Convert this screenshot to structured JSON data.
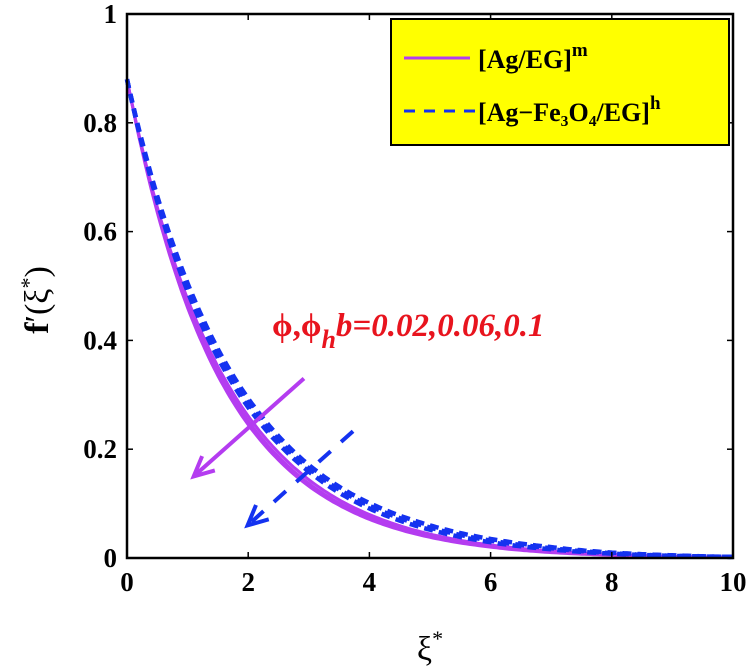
{
  "chart_data": {
    "type": "line",
    "title": "",
    "xlabel": "ξ*",
    "ylabel": "f′(ξ*)",
    "xlim": [
      0,
      10
    ],
    "ylim": [
      0,
      1
    ],
    "xticks": [
      0,
      2,
      4,
      6,
      8,
      10
    ],
    "xtick_labels": [
      "0",
      "2",
      "4",
      "6",
      "8",
      "10"
    ],
    "yticks": [
      0,
      0.2,
      0.4,
      0.6,
      0.8,
      1
    ],
    "ytick_labels": [
      "0",
      "0.2",
      "0.4",
      "0.6",
      "0.8",
      "1"
    ],
    "grid": false,
    "legend_position": "upper right",
    "legend": [
      {
        "label": "[Ag/EG]",
        "sup": "m",
        "style": "solid",
        "color": "#b43cf0"
      },
      {
        "label": "[Ag−Fe₃O₄/EG]",
        "sup": "h",
        "style": "dashed",
        "color": "#1432f0"
      }
    ],
    "annotation": {
      "text": "ϕ,ϕ",
      "sub": "h",
      "text2": "b=0.02,0.06,0.1",
      "color": "#e8141e"
    },
    "x": [
      0,
      0.5,
      1,
      1.5,
      2,
      2.5,
      3,
      3.5,
      4,
      5,
      6,
      7,
      8,
      9,
      10
    ],
    "series": [
      {
        "name": "[Ag/EG]^m b=0.02",
        "style": "solid",
        "color": "#b43cf0",
        "values": [
          0.88,
          0.635,
          0.46,
          0.335,
          0.245,
          0.18,
          0.132,
          0.097,
          0.071,
          0.038,
          0.02,
          0.01,
          0.005,
          0.002,
          0.001
        ]
      },
      {
        "name": "[Ag/EG]^m b=0.06",
        "style": "solid",
        "color": "#b43cf0",
        "values": [
          0.88,
          0.64,
          0.468,
          0.343,
          0.252,
          0.186,
          0.137,
          0.101,
          0.075,
          0.041,
          0.022,
          0.011,
          0.006,
          0.003,
          0.001
        ]
      },
      {
        "name": "[Ag/EG]^m b=0.1",
        "style": "solid",
        "color": "#b43cf0",
        "values": [
          0.88,
          0.645,
          0.476,
          0.352,
          0.261,
          0.194,
          0.144,
          0.107,
          0.08,
          0.044,
          0.024,
          0.013,
          0.007,
          0.003,
          0.001
        ]
      },
      {
        "name": "[Ag−Fe3O4/EG]^h b=0.02",
        "style": "dashed",
        "color": "#1432f0",
        "values": [
          0.88,
          0.655,
          0.49,
          0.368,
          0.277,
          0.21,
          0.159,
          0.12,
          0.091,
          0.052,
          0.029,
          0.016,
          0.008,
          0.004,
          0.002
        ]
      },
      {
        "name": "[Ag−Fe3O4/EG]^h b=0.06",
        "style": "dashed",
        "color": "#1432f0",
        "values": [
          0.88,
          0.66,
          0.498,
          0.376,
          0.285,
          0.217,
          0.165,
          0.126,
          0.096,
          0.056,
          0.032,
          0.018,
          0.009,
          0.004,
          0.002
        ]
      },
      {
        "name": "[Ag−Fe3O4/EG]^h b=0.1",
        "style": "dashed",
        "color": "#1432f0",
        "values": [
          0.88,
          0.665,
          0.505,
          0.384,
          0.293,
          0.224,
          0.171,
          0.131,
          0.101,
          0.06,
          0.035,
          0.02,
          0.01,
          0.005,
          0.002
        ]
      }
    ],
    "arrows": [
      {
        "name": "purple-arrow",
        "color": "#b43cf0",
        "style": "solid",
        "from": [
          2.92,
          0.33
        ],
        "to": [
          1.1,
          0.15
        ]
      },
      {
        "name": "blue-arrow",
        "color": "#1432f0",
        "style": "dashed",
        "from": [
          3.73,
          0.233
        ],
        "to": [
          1.99,
          0.06
        ]
      }
    ]
  }
}
